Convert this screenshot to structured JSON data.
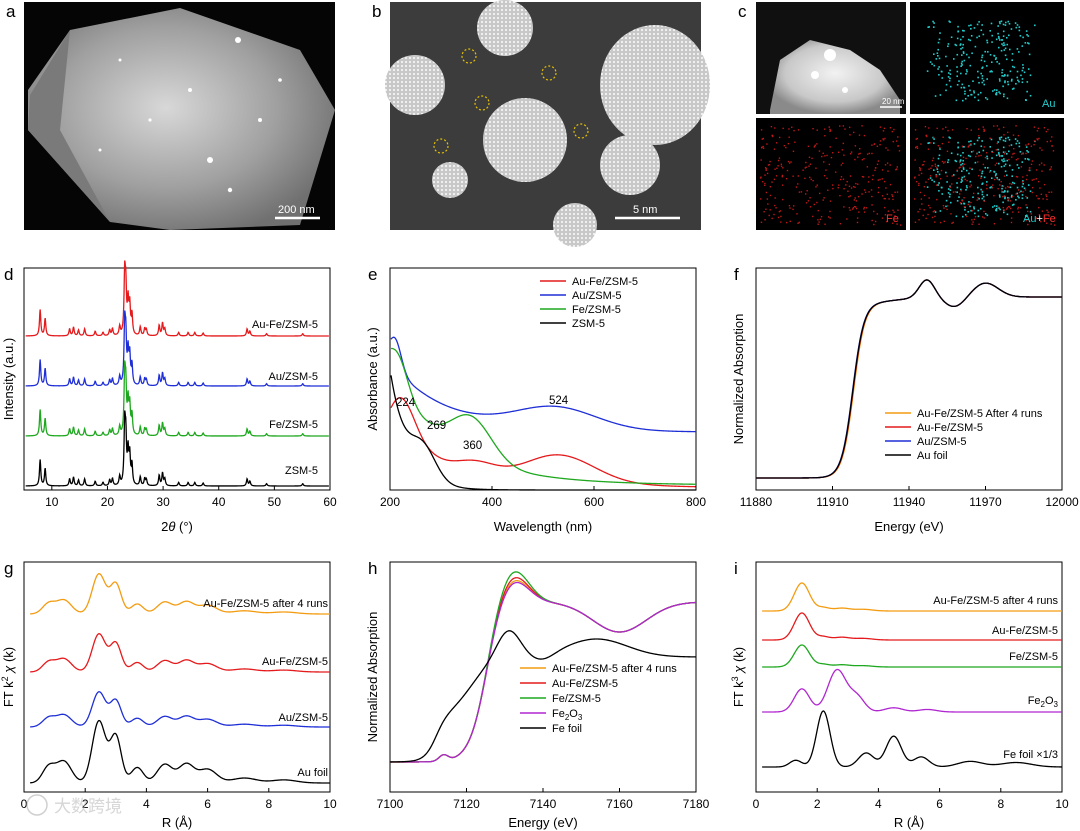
{
  "panel_letters": {
    "a": "a",
    "b": "b",
    "c": "c",
    "d": "d",
    "e": "e",
    "f": "f",
    "g": "g",
    "h": "h",
    "i": "i"
  },
  "micrographs": {
    "a": {
      "scale_bar": "200 nm"
    },
    "b": {
      "scale_bar": "5 nm"
    },
    "c": {
      "scale_bar": "20 nm",
      "au": "Au",
      "fe": "Fe",
      "merge_au": "Au",
      "merge_plus": "+",
      "merge_fe": "Fe"
    }
  },
  "watermark": "大数跨境",
  "colors": {
    "red": "#e41a1c",
    "blue": "#1f2fd6",
    "green": "#1fa81f",
    "black": "#000000",
    "orange": "#f39c12",
    "purple": "#b026d0",
    "cyan": "#22cccc"
  },
  "chart_data": [
    {
      "id": "d",
      "type": "line",
      "xlabel_pre": "2",
      "xlabel_theta": "θ",
      "xlabel_post": " (°)",
      "ylabel": "Intensity (a.u.)",
      "xlim": [
        5,
        60
      ],
      "xticks": [
        "10",
        "20",
        "30",
        "40",
        "50",
        "60"
      ],
      "series": [
        {
          "name": "Au-Fe/ZSM-5",
          "color": "#e41a1c"
        },
        {
          "name": "Au/ZSM-5",
          "color": "#1f2fd6"
        },
        {
          "name": "Fe/ZSM-5",
          "color": "#1fa81f"
        },
        {
          "name": "ZSM-5",
          "color": "#000000"
        }
      ],
      "peaks_2theta": [
        7.9,
        8.8,
        13.2,
        13.9,
        14.8,
        15.9,
        17.8,
        19.2,
        20.4,
        20.9,
        22.2,
        23.1,
        23.3,
        23.7,
        24.0,
        24.4,
        25.9,
        26.7,
        27.0,
        29.3,
        29.9,
        30.3,
        32.8,
        34.5,
        35.7,
        37.2,
        45.1,
        45.6,
        48.6,
        55.1
      ]
    },
    {
      "id": "e",
      "type": "line",
      "xlabel": "Wavelength (nm)",
      "ylabel": "Absorbance (a.u.)",
      "xlim": [
        200,
        800
      ],
      "xticks": [
        "200",
        "400",
        "600",
        "800"
      ],
      "annotations": [
        "224",
        "269",
        "360",
        "524"
      ],
      "series": [
        {
          "name": "Au-Fe/ZSM-5",
          "color": "#e41a1c"
        },
        {
          "name": "Au/ZSM-5",
          "color": "#1f2fd6"
        },
        {
          "name": "Fe/ZSM-5",
          "color": "#1fa81f"
        },
        {
          "name": "ZSM-5",
          "color": "#000000"
        }
      ]
    },
    {
      "id": "f",
      "type": "line",
      "xlabel": "Energy (eV)",
      "ylabel": "Normalized Absorption",
      "xlim": [
        11880,
        12000
      ],
      "xticks": [
        "11880",
        "11910",
        "11940",
        "11970",
        "12000"
      ],
      "series": [
        {
          "name": "Au-Fe/ZSM-5 After 4 runs",
          "color": "#f39c12"
        },
        {
          "name": "Au-Fe/ZSM-5",
          "color": "#e41a1c"
        },
        {
          "name": "Au/ZSM-5",
          "color": "#1f2fd6"
        },
        {
          "name": "Au foil",
          "color": "#000000"
        }
      ]
    },
    {
      "id": "g",
      "type": "line",
      "xlabel": "R (Å)",
      "ylabel_pre": "FT k",
      "ylabel_sup": "2",
      "ylabel_chi": " χ",
      "ylabel_post": " (k)",
      "xlim": [
        0,
        10
      ],
      "xticks": [
        "0",
        "2",
        "4",
        "6",
        "8",
        "10"
      ],
      "series": [
        {
          "name": "Au-Fe/ZSM-5 after 4 runs",
          "color": "#f39c12"
        },
        {
          "name": "Au-Fe/ZSM-5",
          "color": "#e41a1c"
        },
        {
          "name": "Au/ZSM-5",
          "color": "#1f2fd6"
        },
        {
          "name": "Au foil",
          "color": "#000000"
        }
      ]
    },
    {
      "id": "h",
      "type": "line",
      "xlabel": "Energy (eV)",
      "ylabel": "Normalized Absorption",
      "xlim": [
        7100,
        7180
      ],
      "xticks": [
        "7100",
        "7120",
        "7140",
        "7160",
        "7180"
      ],
      "series": [
        {
          "name": "Au-Fe/ZSM-5 after 4 runs",
          "color": "#f39c12"
        },
        {
          "name": "Au-Fe/ZSM-5",
          "color": "#e41a1c"
        },
        {
          "name": "Fe/ZSM-5",
          "color": "#1fa81f"
        },
        {
          "name": "Fe",
          "sub": "2",
          "name2": "O",
          "sub2": "3",
          "color": "#b026d0"
        },
        {
          "name": "Fe foil",
          "color": "#000000"
        }
      ]
    },
    {
      "id": "i",
      "type": "line",
      "xlabel": "R (Å)",
      "ylabel_pre": "FT k",
      "ylabel_sup": "3",
      "ylabel_chi": " χ",
      "ylabel_post": " (k)",
      "xlim": [
        0,
        10
      ],
      "xticks": [
        "0",
        "2",
        "4",
        "6",
        "8",
        "10"
      ],
      "series": [
        {
          "name": "Au-Fe/ZSM-5 after 4 runs",
          "color": "#f39c12"
        },
        {
          "name": "Au-Fe/ZSM-5",
          "color": "#e41a1c"
        },
        {
          "name": "Fe/ZSM-5",
          "color": "#1fa81f"
        },
        {
          "name": "Fe",
          "sub": "2",
          "name2": "O",
          "sub2": "3",
          "color": "#b026d0"
        },
        {
          "name": "Fe foil ×1/3",
          "color": "#000000"
        }
      ]
    }
  ]
}
